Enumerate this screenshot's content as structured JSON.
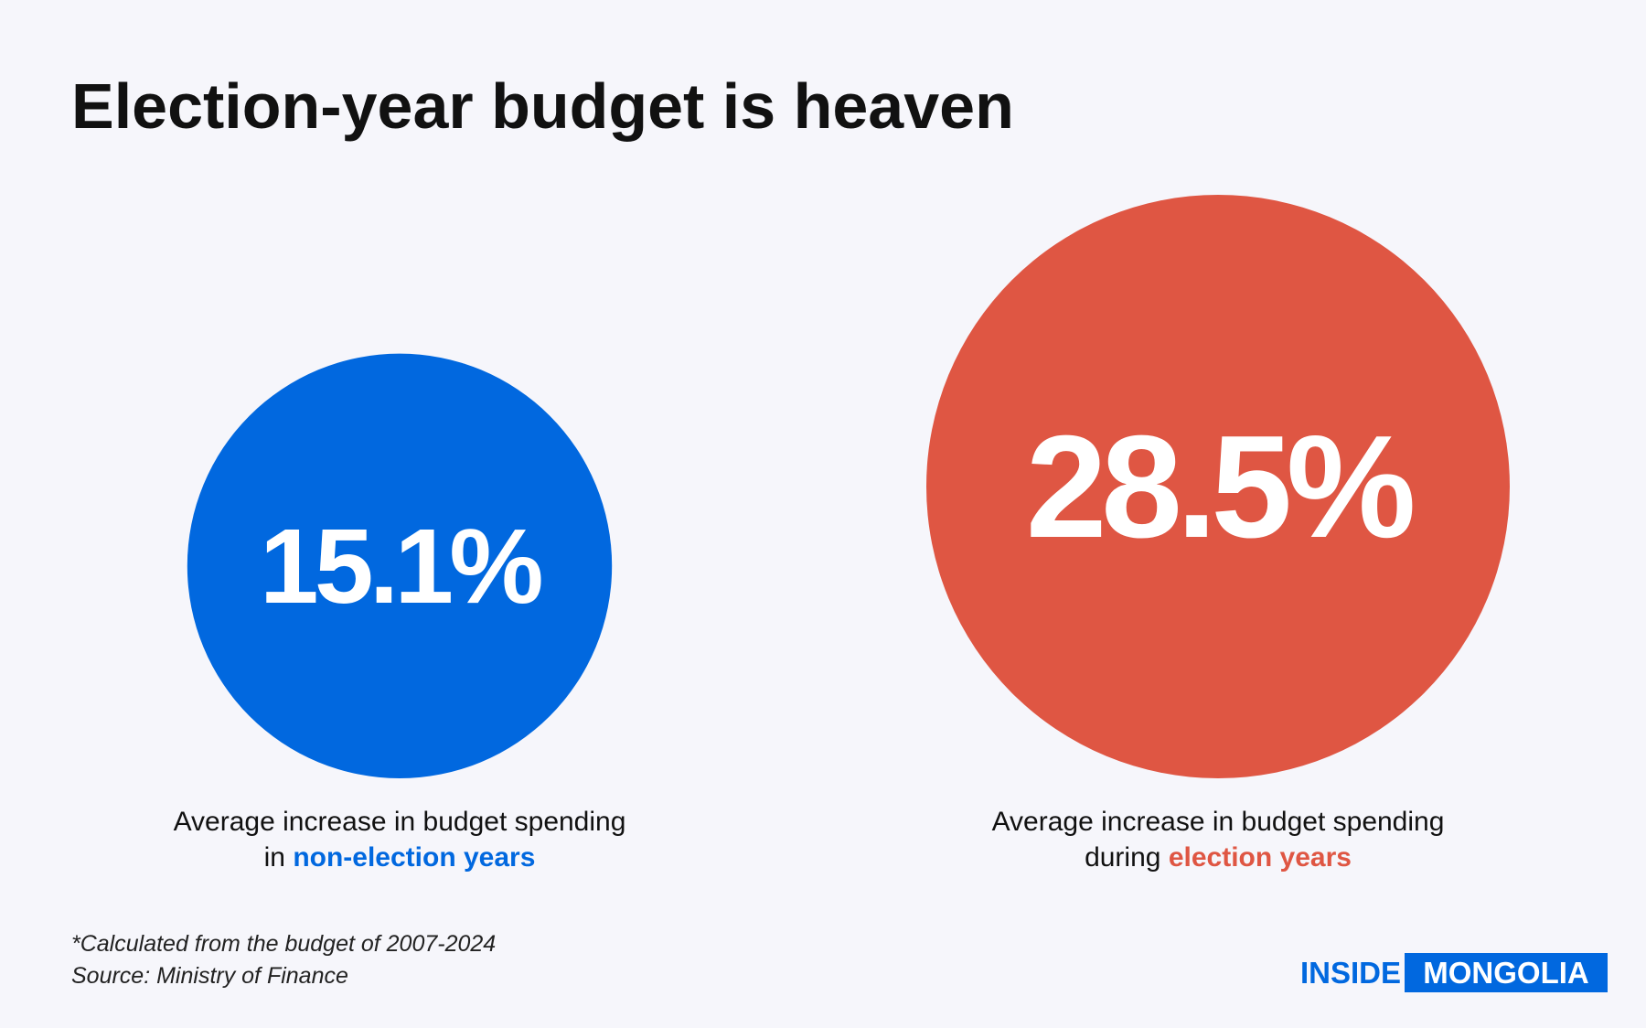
{
  "chart_data": {
    "type": "bubble",
    "title": "Election-year budget is heaven",
    "values": [
      15.1,
      28.5
    ],
    "value_labels": [
      "15.1%",
      "28.5%"
    ],
    "colors": [
      "#0168df",
      "#df5643"
    ],
    "captions": [
      {
        "line1": "Average increase in budget spending",
        "prefix": "in",
        "highlight": "non-election years"
      },
      {
        "line1": "Average increase in budget spending",
        "prefix": "during",
        "highlight": "election years"
      }
    ]
  },
  "footnote": [
    "*Calculated from the budget of 2007-2024",
    "Source: Ministry of Finance"
  ],
  "logo": {
    "left": "INSIDE",
    "right": "MONGOLIA"
  }
}
